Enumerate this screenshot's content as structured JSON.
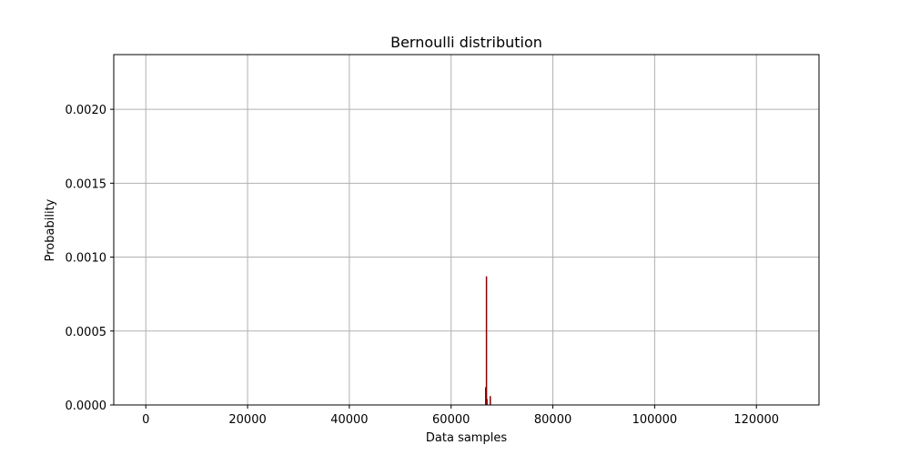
{
  "chart_data": {
    "type": "bar",
    "title": "Bernoulli distribution",
    "xlabel": "Data samples",
    "ylabel": "Probability",
    "xlim": [
      -6300,
      132300
    ],
    "ylim": [
      0,
      0.00237
    ],
    "xticks": [
      0,
      20000,
      40000,
      60000,
      80000,
      100000,
      120000
    ],
    "yticks": [
      0.0,
      0.0005,
      0.001,
      0.0015,
      0.002
    ],
    "ytick_labels": [
      "0.0000",
      "0.0005",
      "0.0010",
      "0.0015",
      "0.0020"
    ],
    "grid": true,
    "bar_color": "#8b0000",
    "grid_color": "#b0b0b0",
    "series": [
      {
        "x": [
          66800,
          66950,
          67050,
          67700
        ],
        "values": [
          0.00012,
          0.00087,
          4e-05,
          6e-05
        ]
      }
    ]
  }
}
